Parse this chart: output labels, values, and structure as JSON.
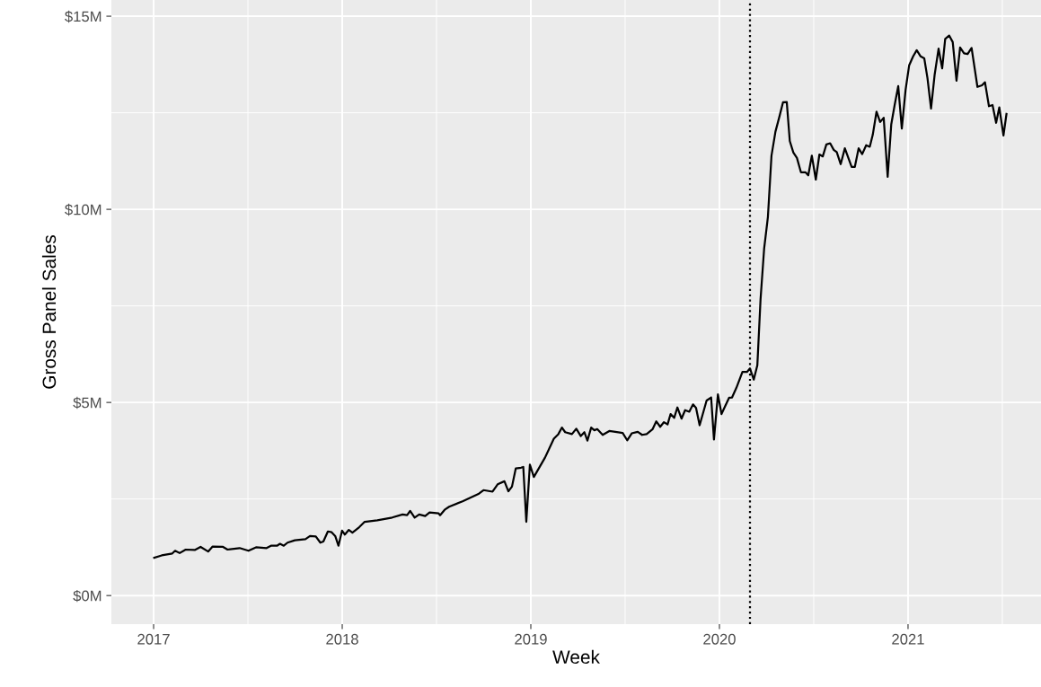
{
  "chart_data": {
    "type": "line",
    "xlabel": "Week",
    "ylabel": "Gross Panel Sales",
    "x": [
      2017.003,
      2017.043,
      2017.099,
      2017.114,
      2017.138,
      2017.17,
      2017.218,
      2017.249,
      2017.289,
      2017.313,
      2017.368,
      2017.392,
      2017.456,
      2017.503,
      2017.543,
      2017.599,
      2017.622,
      2017.654,
      2017.67,
      2017.69,
      2017.71,
      2017.749,
      2017.805,
      2017.829,
      2017.86,
      2017.884,
      2017.9,
      2017.924,
      2017.944,
      2017.963,
      2017.98,
      2017.999,
      2018.014,
      2018.035,
      2018.054,
      2018.09,
      2018.119,
      2018.186,
      2018.265,
      2018.32,
      2018.344,
      2018.36,
      2018.384,
      2018.408,
      2018.44,
      2018.463,
      2018.511,
      2018.519,
      2018.543,
      2018.567,
      2018.638,
      2018.725,
      2018.749,
      2018.797,
      2018.824,
      2018.86,
      2018.881,
      2018.9,
      2018.92,
      2018.948,
      2018.96,
      2018.976,
      2018.995,
      2019.016,
      2019.075,
      2019.122,
      2019.146,
      2019.165,
      2019.182,
      2019.218,
      2019.241,
      2019.265,
      2019.284,
      2019.3,
      2019.32,
      2019.337,
      2019.352,
      2019.381,
      2019.416,
      2019.448,
      2019.487,
      2019.511,
      2019.535,
      2019.567,
      2019.59,
      2019.614,
      2019.646,
      2019.665,
      2019.686,
      2019.706,
      2019.725,
      2019.741,
      2019.76,
      2019.777,
      2019.799,
      2019.818,
      2019.84,
      2019.86,
      2019.876,
      2019.895,
      2019.932,
      2019.956,
      2019.971,
      2019.992,
      2020.011,
      2020.051,
      2020.067,
      2020.09,
      2020.122,
      2020.146,
      2020.162,
      2020.182,
      2020.201,
      2020.218,
      2020.237,
      2020.257,
      2020.276,
      2020.297,
      2020.318,
      2020.337,
      2020.357,
      2020.373,
      2020.392,
      2020.411,
      2020.432,
      2020.456,
      2020.471,
      2020.49,
      2020.511,
      2020.53,
      2020.548,
      2020.567,
      2020.587,
      2020.606,
      2020.622,
      2020.643,
      2020.665,
      2020.701,
      2020.718,
      2020.738,
      2020.757,
      2020.778,
      2020.797,
      2020.813,
      2020.833,
      2020.852,
      2020.871,
      2020.892,
      2020.911,
      2020.929,
      2020.948,
      2020.967,
      2020.987,
      2021.006,
      2021.027,
      2021.046,
      2021.067,
      2021.086,
      2021.103,
      2021.122,
      2021.141,
      2021.162,
      2021.181,
      2021.197,
      2021.218,
      2021.237,
      2021.257,
      2021.276,
      2021.297,
      2021.316,
      2021.337,
      2021.368,
      2021.392,
      2021.408,
      2021.429,
      2021.448,
      2021.467,
      2021.484,
      2021.506,
      2021.522
    ],
    "series": [
      {
        "color": "#000000",
        "values": [
          0.98,
          1.04,
          1.09,
          1.16,
          1.1,
          1.19,
          1.18,
          1.26,
          1.14,
          1.27,
          1.26,
          1.19,
          1.23,
          1.16,
          1.25,
          1.23,
          1.29,
          1.29,
          1.34,
          1.29,
          1.37,
          1.43,
          1.46,
          1.54,
          1.53,
          1.37,
          1.4,
          1.66,
          1.64,
          1.54,
          1.29,
          1.68,
          1.58,
          1.7,
          1.63,
          1.77,
          1.91,
          1.95,
          2.02,
          2.1,
          2.08,
          2.19,
          2.02,
          2.1,
          2.06,
          2.15,
          2.13,
          2.08,
          2.22,
          2.3,
          2.44,
          2.64,
          2.73,
          2.69,
          2.88,
          2.96,
          2.7,
          2.82,
          3.29,
          3.31,
          3.33,
          1.91,
          3.39,
          3.07,
          3.57,
          4.06,
          4.18,
          4.35,
          4.23,
          4.18,
          4.32,
          4.13,
          4.23,
          4.01,
          4.35,
          4.28,
          4.31,
          4.16,
          4.26,
          4.24,
          4.21,
          4.02,
          4.2,
          4.24,
          4.16,
          4.18,
          4.31,
          4.51,
          4.37,
          4.49,
          4.43,
          4.7,
          4.6,
          4.87,
          4.58,
          4.8,
          4.76,
          4.95,
          4.86,
          4.41,
          5.05,
          5.13,
          4.04,
          5.21,
          4.7,
          5.12,
          5.13,
          5.38,
          5.79,
          5.79,
          5.88,
          5.59,
          5.96,
          7.67,
          8.98,
          9.8,
          11.39,
          12.01,
          12.4,
          12.77,
          12.78,
          11.77,
          11.47,
          11.33,
          10.96,
          10.96,
          10.88,
          11.39,
          10.77,
          11.42,
          11.37,
          11.68,
          11.71,
          11.54,
          11.48,
          11.17,
          11.58,
          11.1,
          11.1,
          11.58,
          11.43,
          11.66,
          11.62,
          11.93,
          12.53,
          12.26,
          12.37,
          10.84,
          12.2,
          12.7,
          13.19,
          12.09,
          13.09,
          13.73,
          13.96,
          14.12,
          13.96,
          13.91,
          13.4,
          12.61,
          13.48,
          14.16,
          13.65,
          14.41,
          14.5,
          14.33,
          13.33,
          14.19,
          14.04,
          14.02,
          14.18,
          13.17,
          13.21,
          13.29,
          12.67,
          12.7,
          12.24,
          12.64,
          11.91,
          12.47
        ]
      }
    ],
    "xlim": [
      2016.776,
      2021.705
    ],
    "xticks": [
      2017,
      2018,
      2019,
      2020,
      2021
    ],
    "ylim": [
      -0.74,
      15.42
    ],
    "yticks": [
      {
        "value": 0,
        "label": "$0M"
      },
      {
        "value": 5,
        "label": "$5M"
      },
      {
        "value": 10,
        "label": "$10M"
      },
      {
        "value": 15,
        "label": "$15M"
      }
    ],
    "ref_lines": [
      {
        "axis": "x",
        "value": 2020.162,
        "color": "#000000",
        "line_style": "dotted"
      }
    ],
    "grid": true,
    "legend": false,
    "marker": "none",
    "line_style": "solid"
  }
}
